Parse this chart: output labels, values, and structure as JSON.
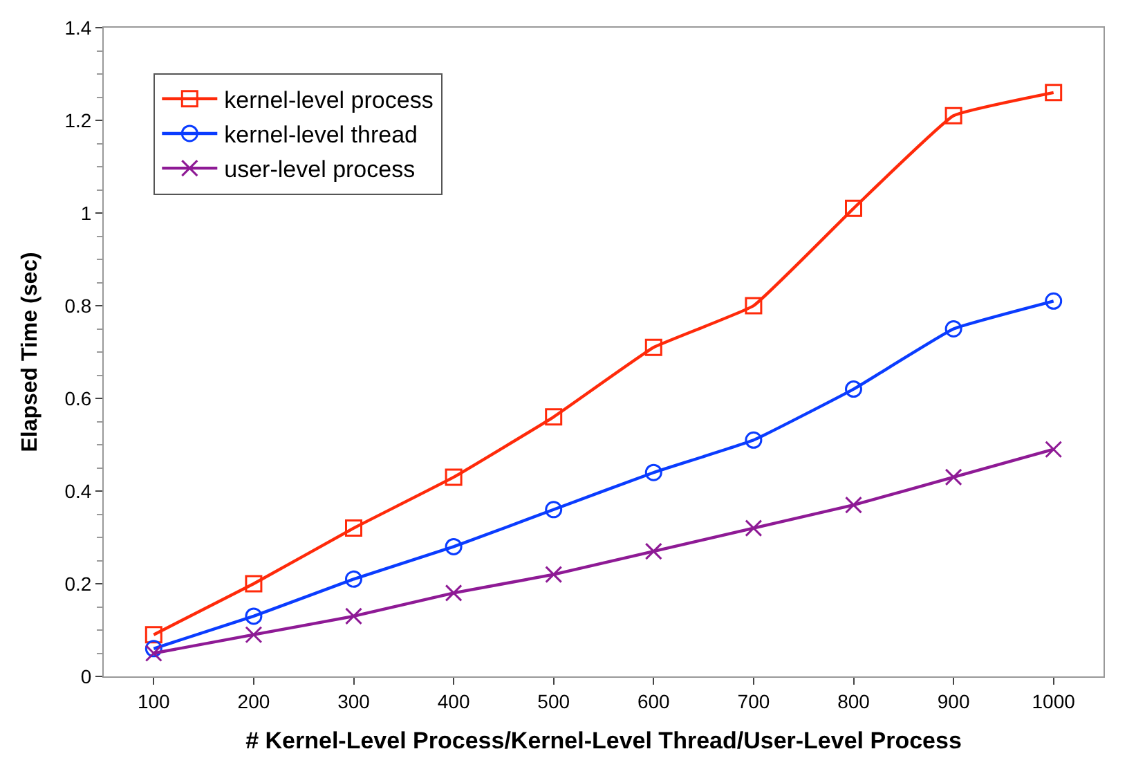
{
  "chart_data": {
    "type": "line",
    "xlabel": "# Kernel-Level Process/Kernel-Level Thread/User-Level Process",
    "ylabel": "Elapsed Time (sec)",
    "categories": [
      "100",
      "200",
      "300",
      "400",
      "500",
      "600",
      "700",
      "800",
      "900",
      "1000"
    ],
    "series": [
      {
        "name": "kernel-level process",
        "color": "#ff2a0a",
        "marker": "square",
        "values": [
          0.09,
          0.2,
          0.32,
          0.43,
          0.56,
          0.71,
          0.8,
          1.01,
          1.21,
          1.26
        ]
      },
      {
        "name": "kernel-level thread",
        "color": "#0a3cff",
        "marker": "circle",
        "values": [
          0.06,
          0.13,
          0.21,
          0.28,
          0.36,
          0.44,
          0.51,
          0.62,
          0.75,
          0.81
        ]
      },
      {
        "name": "user-level process",
        "color": "#8e1a95",
        "marker": "cross",
        "values": [
          0.05,
          0.09,
          0.13,
          0.18,
          0.22,
          0.27,
          0.32,
          0.37,
          0.43,
          0.49
        ]
      }
    ],
    "ylim": [
      0,
      1.4
    ],
    "yticks": [
      0,
      0.2,
      0.4,
      0.6,
      0.8,
      1,
      1.2,
      1.4
    ],
    "legend": "top left"
  }
}
